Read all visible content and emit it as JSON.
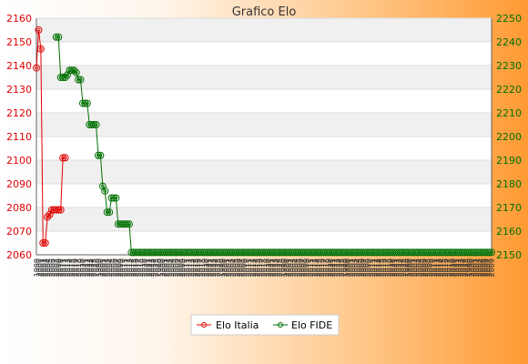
{
  "chart_data": {
    "type": "line",
    "title": "Grafico Elo",
    "grid": true,
    "legend_position": "bottom-center",
    "y_left": {
      "min": 2060,
      "max": 2160,
      "step": 10,
      "color": "#e00000"
    },
    "y_right": {
      "min": 2150,
      "max": 2250,
      "step": 10,
      "color": "#007000"
    },
    "x_tick_labels": [
      "1999",
      "2000",
      "2001",
      "2002",
      "2003",
      "2004",
      "2005",
      "2006",
      "2007",
      "2008",
      "2009",
      "2010",
      "2011",
      "2012",
      "2013",
      "2014",
      "2015",
      "2016",
      "2017",
      "2018",
      "2019",
      "2020",
      "2021",
      "2022",
      "2023",
      "2024",
      "2025",
      "2026"
    ],
    "series": [
      {
        "name": "Elo Italia",
        "axis": "left",
        "color": "#e00000",
        "x": [
          1,
          2,
          3,
          4,
          5,
          6,
          7,
          8,
          9,
          10,
          11,
          12,
          13,
          14
        ],
        "values": [
          2139,
          2155,
          2147,
          2065,
          2065,
          2076,
          2077,
          2079,
          2079,
          2079,
          2079,
          2079,
          2101,
          2101
        ]
      },
      {
        "name": "Elo FIDE",
        "axis": "right",
        "color": "#007000",
        "x": [
          10,
          11,
          12,
          13,
          14,
          15,
          16,
          17,
          18,
          19,
          20,
          21,
          22,
          23,
          24,
          25,
          26,
          27,
          28,
          29,
          30,
          31,
          32,
          33,
          34,
          35,
          36,
          37,
          38,
          39,
          40,
          41,
          42,
          43,
          44,
          45,
          46,
          47,
          48,
          49,
          50,
          51,
          52,
          53,
          54,
          55,
          56,
          57,
          58,
          59,
          60,
          61,
          62,
          63,
          64,
          65,
          66,
          67,
          68,
          69,
          70,
          71,
          72,
          73,
          74,
          75,
          76,
          77,
          78,
          79,
          80,
          81,
          82,
          83,
          84,
          85,
          86,
          87,
          88,
          89,
          90,
          91,
          92,
          93,
          94,
          95,
          96,
          97,
          98,
          99,
          100,
          101,
          102,
          103,
          104,
          105,
          106,
          107,
          108,
          109,
          110,
          111,
          112,
          113,
          114,
          115,
          116,
          117,
          118,
          119,
          120,
          121,
          122,
          123,
          124,
          125,
          126,
          127,
          128,
          129,
          130,
          131,
          132,
          133,
          134,
          135,
          136,
          137,
          138,
          139,
          140,
          141,
          142,
          143,
          144,
          145,
          146,
          147,
          148,
          149,
          150,
          151,
          152,
          153,
          154,
          155,
          156,
          157,
          158,
          159,
          160,
          161,
          162,
          163,
          164,
          165,
          166,
          167,
          168,
          169,
          170,
          171,
          172,
          173,
          174,
          175,
          176,
          177,
          178,
          179,
          180,
          181,
          182,
          183,
          184,
          185,
          186,
          187,
          188,
          189,
          190,
          191,
          192,
          193,
          194,
          195,
          196,
          197,
          198,
          199,
          200,
          201,
          202,
          203,
          204,
          205,
          206,
          207
        ],
        "values": [
          2242,
          2242,
          2225,
          2225,
          2225,
          2226,
          2228,
          2228,
          2228,
          2227,
          2224,
          2224,
          2214,
          2214,
          2214,
          2205,
          2205,
          2205,
          2205,
          2192,
          2192,
          2179,
          2177,
          2168,
          2168,
          2174,
          2174,
          2174,
          2163,
          2163,
          2163,
          2163,
          2163,
          2163,
          2151,
          2151,
          2151,
          2151,
          2151,
          2151,
          2151,
          2151,
          2151,
          2151,
          2151,
          2151,
          2151,
          2151,
          2151,
          2151,
          2151,
          2151,
          2151,
          2151,
          2151,
          2151,
          2151,
          2151,
          2151,
          2151,
          2151,
          2151,
          2151,
          2151,
          2151,
          2151,
          2151,
          2151,
          2151,
          2151,
          2151,
          2151,
          2151,
          2151,
          2151,
          2151,
          2151,
          2151,
          2151,
          2151,
          2151,
          2151,
          2151,
          2151,
          2151,
          2151,
          2151,
          2151,
          2151,
          2151,
          2151,
          2151,
          2151,
          2151,
          2151,
          2151,
          2151,
          2151,
          2151,
          2151,
          2151,
          2151,
          2151,
          2151,
          2151,
          2151,
          2151,
          2151,
          2151,
          2151,
          2151,
          2151,
          2151,
          2151,
          2151,
          2151,
          2151,
          2151,
          2151,
          2151,
          2151,
          2151,
          2151,
          2151,
          2151,
          2151,
          2151,
          2151,
          2151,
          2151,
          2151,
          2151,
          2151,
          2151,
          2151,
          2151,
          2151,
          2151,
          2151,
          2151,
          2151,
          2151,
          2151,
          2151,
          2151,
          2151,
          2151,
          2151,
          2151,
          2151,
          2151,
          2151,
          2151,
          2151,
          2151,
          2151,
          2151,
          2151,
          2151,
          2151,
          2151,
          2151,
          2151,
          2151,
          2151,
          2151,
          2151,
          2151,
          2151,
          2151,
          2151,
          2151,
          2151,
          2151,
          2151,
          2151,
          2151,
          2151,
          2151,
          2151,
          2151,
          2151,
          2151,
          2151,
          2151,
          2151,
          2151,
          2151,
          2151,
          2151,
          2151,
          2151,
          2151,
          2151,
          2151,
          2151,
          2151,
          2151
        ]
      }
    ],
    "x_range": [
      1,
      207
    ]
  }
}
